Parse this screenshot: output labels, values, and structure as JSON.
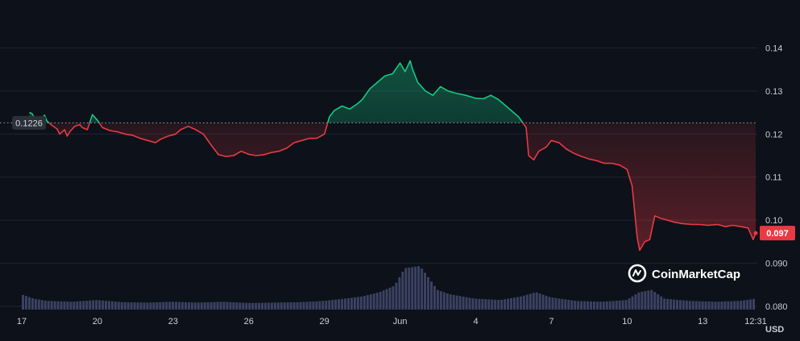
{
  "chart_data": {
    "type": "line",
    "currency_label": "USD",
    "watermark": "CoinMarketCap",
    "reference_price": 0.1226,
    "reference_label": "0.1226",
    "current_price": 0.097,
    "current_label": "0.097",
    "ylim": [
      0.08,
      0.147
    ],
    "y_ticks": [
      {
        "value": 0.08,
        "label": "0.080"
      },
      {
        "value": 0.09,
        "label": "0.090"
      },
      {
        "value": 0.1,
        "label": "0.10"
      },
      {
        "value": 0.11,
        "label": "0.11"
      },
      {
        "value": 0.12,
        "label": "0.12"
      },
      {
        "value": 0.13,
        "label": "0.13"
      },
      {
        "value": 0.14,
        "label": "0.14"
      }
    ],
    "xlim": [
      0,
      29.1
    ],
    "x_ticks": [
      {
        "x": 0,
        "label": "17"
      },
      {
        "x": 3,
        "label": "20"
      },
      {
        "x": 6,
        "label": "23"
      },
      {
        "x": 9,
        "label": "26"
      },
      {
        "x": 12,
        "label": "29"
      },
      {
        "x": 15,
        "label": "Jun"
      },
      {
        "x": 18,
        "label": "4"
      },
      {
        "x": 21,
        "label": "7"
      },
      {
        "x": 24,
        "label": "10"
      },
      {
        "x": 27,
        "label": "13"
      },
      {
        "x": 29.1,
        "label": "12:31"
      }
    ],
    "colors": {
      "up": "#16c784",
      "down": "#ea3943",
      "volume": "#3b4263",
      "background": "#0d1119"
    },
    "price_series": [
      [
        0.3,
        0.125
      ],
      [
        0.4,
        0.1248
      ],
      [
        0.5,
        0.1238
      ],
      [
        0.6,
        0.1228
      ],
      [
        0.7,
        0.1222
      ],
      [
        0.9,
        0.1244
      ],
      [
        1.0,
        0.123
      ],
      [
        1.2,
        0.122
      ],
      [
        1.4,
        0.1212
      ],
      [
        1.5,
        0.12
      ],
      [
        1.7,
        0.121
      ],
      [
        1.8,
        0.1195
      ],
      [
        1.9,
        0.1205
      ],
      [
        2.1,
        0.1218
      ],
      [
        2.3,
        0.1222
      ],
      [
        2.4,
        0.1215
      ],
      [
        2.6,
        0.121
      ],
      [
        2.8,
        0.1245
      ],
      [
        3.0,
        0.1232
      ],
      [
        3.2,
        0.1215
      ],
      [
        3.5,
        0.1208
      ],
      [
        3.8,
        0.1205
      ],
      [
        4.1,
        0.12
      ],
      [
        4.4,
        0.1197
      ],
      [
        4.7,
        0.119
      ],
      [
        5.0,
        0.1185
      ],
      [
        5.3,
        0.118
      ],
      [
        5.5,
        0.1188
      ],
      [
        5.8,
        0.1195
      ],
      [
        6.1,
        0.12
      ],
      [
        6.3,
        0.121
      ],
      [
        6.6,
        0.1218
      ],
      [
        6.9,
        0.121
      ],
      [
        7.2,
        0.12
      ],
      [
        7.5,
        0.1175
      ],
      [
        7.8,
        0.1152
      ],
      [
        8.1,
        0.1148
      ],
      [
        8.4,
        0.115
      ],
      [
        8.7,
        0.116
      ],
      [
        9.0,
        0.1153
      ],
      [
        9.3,
        0.115
      ],
      [
        9.6,
        0.1152
      ],
      [
        9.9,
        0.1157
      ],
      [
        10.2,
        0.116
      ],
      [
        10.5,
        0.1167
      ],
      [
        10.8,
        0.118
      ],
      [
        11.1,
        0.1185
      ],
      [
        11.4,
        0.119
      ],
      [
        11.7,
        0.119
      ],
      [
        12.0,
        0.12
      ],
      [
        12.2,
        0.124
      ],
      [
        12.4,
        0.1255
      ],
      [
        12.7,
        0.1265
      ],
      [
        13.0,
        0.1258
      ],
      [
        13.3,
        0.127
      ],
      [
        13.5,
        0.128
      ],
      [
        13.8,
        0.1305
      ],
      [
        14.1,
        0.132
      ],
      [
        14.4,
        0.1335
      ],
      [
        14.7,
        0.134
      ],
      [
        15.0,
        0.1365
      ],
      [
        15.2,
        0.1345
      ],
      [
        15.4,
        0.137
      ],
      [
        15.5,
        0.135
      ],
      [
        15.7,
        0.132
      ],
      [
        16.0,
        0.13
      ],
      [
        16.3,
        0.129
      ],
      [
        16.6,
        0.131
      ],
      [
        16.9,
        0.13
      ],
      [
        17.2,
        0.1295
      ],
      [
        17.6,
        0.129
      ],
      [
        18.0,
        0.1283
      ],
      [
        18.3,
        0.1282
      ],
      [
        18.6,
        0.129
      ],
      [
        18.9,
        0.128
      ],
      [
        19.2,
        0.1265
      ],
      [
        19.5,
        0.125
      ],
      [
        19.7,
        0.124
      ],
      [
        20.0,
        0.1215
      ],
      [
        20.1,
        0.115
      ],
      [
        20.3,
        0.114
      ],
      [
        20.5,
        0.116
      ],
      [
        20.8,
        0.117
      ],
      [
        21.0,
        0.1185
      ],
      [
        21.3,
        0.118
      ],
      [
        21.6,
        0.1165
      ],
      [
        21.9,
        0.1155
      ],
      [
        22.2,
        0.1148
      ],
      [
        22.5,
        0.1142
      ],
      [
        22.8,
        0.1138
      ],
      [
        23.1,
        0.1132
      ],
      [
        23.4,
        0.1132
      ],
      [
        23.7,
        0.1128
      ],
      [
        24.0,
        0.1118
      ],
      [
        24.2,
        0.108
      ],
      [
        24.4,
        0.096
      ],
      [
        24.5,
        0.093
      ],
      [
        24.7,
        0.095
      ],
      [
        24.9,
        0.0955
      ],
      [
        25.1,
        0.101
      ],
      [
        25.3,
        0.1005
      ],
      [
        25.6,
        0.1
      ],
      [
        25.9,
        0.0995
      ],
      [
        26.2,
        0.0992
      ],
      [
        26.6,
        0.099
      ],
      [
        26.9,
        0.099
      ],
      [
        27.2,
        0.0988
      ],
      [
        27.6,
        0.099
      ],
      [
        27.9,
        0.0985
      ],
      [
        28.2,
        0.0988
      ],
      [
        28.5,
        0.0985
      ],
      [
        28.8,
        0.0982
      ],
      [
        29.0,
        0.0955
      ],
      [
        29.1,
        0.097
      ]
    ],
    "volume_series": [
      [
        0.0,
        0.35
      ],
      [
        0.5,
        0.25
      ],
      [
        1.0,
        0.2
      ],
      [
        2.0,
        0.18
      ],
      [
        3.0,
        0.22
      ],
      [
        4.0,
        0.17
      ],
      [
        5.0,
        0.16
      ],
      [
        6.0,
        0.18
      ],
      [
        7.0,
        0.16
      ],
      [
        8.0,
        0.18
      ],
      [
        9.0,
        0.15
      ],
      [
        10.0,
        0.16
      ],
      [
        11.0,
        0.17
      ],
      [
        12.0,
        0.2
      ],
      [
        12.8,
        0.25
      ],
      [
        13.5,
        0.3
      ],
      [
        14.2,
        0.4
      ],
      [
        14.8,
        0.55
      ],
      [
        15.2,
        0.95
      ],
      [
        15.8,
        1.0
      ],
      [
        16.0,
        0.85
      ],
      [
        16.5,
        0.45
      ],
      [
        17.0,
        0.35
      ],
      [
        18.0,
        0.25
      ],
      [
        19.0,
        0.22
      ],
      [
        19.8,
        0.3
      ],
      [
        20.4,
        0.4
      ],
      [
        21.0,
        0.28
      ],
      [
        22.0,
        0.2
      ],
      [
        23.0,
        0.18
      ],
      [
        24.0,
        0.22
      ],
      [
        24.5,
        0.4
      ],
      [
        25.0,
        0.45
      ],
      [
        25.5,
        0.25
      ],
      [
        26.5,
        0.2
      ],
      [
        27.5,
        0.18
      ],
      [
        28.5,
        0.2
      ],
      [
        29.1,
        0.25
      ]
    ]
  }
}
